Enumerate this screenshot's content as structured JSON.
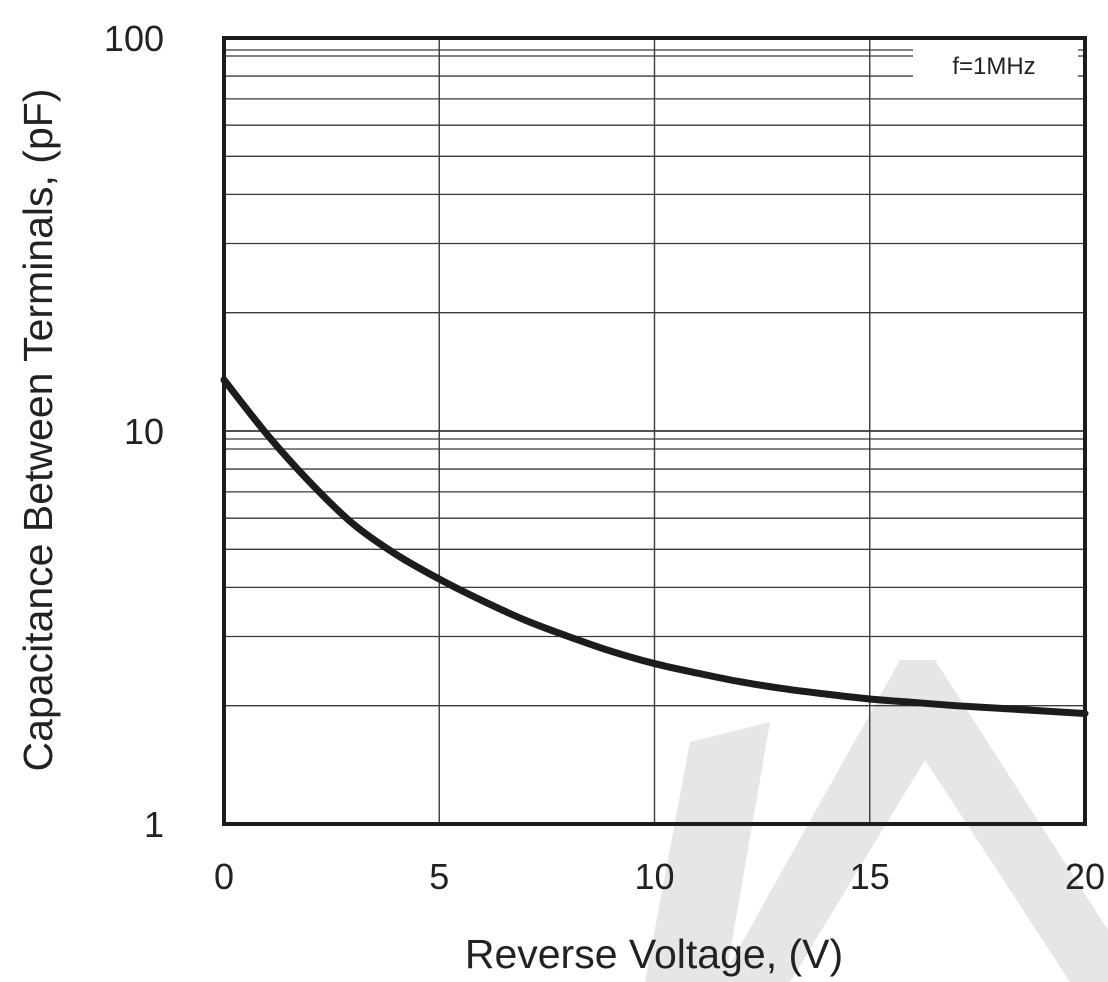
{
  "chart_data": {
    "type": "line",
    "xlabel": "Reverse Voltage, (V)",
    "ylabel": "Capacitance Between Terminals, (pF)",
    "annotation": "f=1MHz",
    "xlim": [
      0,
      20
    ],
    "ylim": [
      1,
      100
    ],
    "y_scale": "log",
    "grid": true,
    "x_ticks": [
      0,
      5,
      10,
      15,
      20
    ],
    "x_tick_labels": [
      "0",
      "5",
      "10",
      "15",
      "20"
    ],
    "y_ticks": [
      1,
      10,
      100
    ],
    "y_tick_labels": [
      "1",
      "10",
      "100"
    ],
    "series": [
      {
        "x": [
          0,
          1,
          2,
          3,
          4,
          5,
          6,
          7,
          8,
          9,
          10,
          11,
          12,
          13,
          14,
          15,
          16,
          17,
          18,
          19,
          20
        ],
        "y": [
          13.5,
          9.8,
          7.4,
          5.8,
          4.85,
          4.2,
          3.7,
          3.3,
          3.0,
          2.75,
          2.56,
          2.42,
          2.3,
          2.21,
          2.14,
          2.08,
          2.04,
          2.0,
          1.97,
          1.94,
          1.91
        ]
      }
    ],
    "colors": {
      "line": "#1c1c1c",
      "grid": "#3a3a3a",
      "watermark": "#e6e6e6"
    }
  }
}
